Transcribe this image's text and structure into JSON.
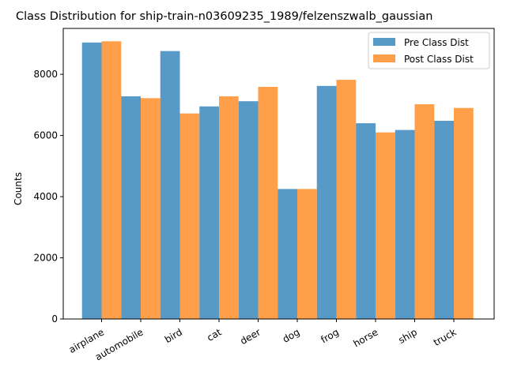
{
  "chart_data": {
    "type": "bar",
    "title": "Class Distribution for ship-train-n03609235_1989/felzenszwalb_gaussian",
    "xlabel": "",
    "ylabel": "Counts",
    "categories": [
      "airplane",
      "automobile",
      "bird",
      "cat",
      "deer",
      "dog",
      "frog",
      "horse",
      "ship",
      "truck"
    ],
    "series": [
      {
        "name": "Pre Class Dist",
        "color": "#1f77b4",
        "values": [
          9040,
          7280,
          8760,
          6950,
          7120,
          4250,
          7620,
          6400,
          6180,
          6480
        ]
      },
      {
        "name": "Post Class Dist",
        "color": "#ff7f0e",
        "values": [
          9080,
          7220,
          6720,
          7280,
          7590,
          4250,
          7820,
          6100,
          7020,
          6900
        ]
      }
    ],
    "ylim": [
      0,
      9500
    ],
    "yticks": [
      0,
      2000,
      4000,
      6000,
      8000
    ],
    "grid": false,
    "legend_position": "top-right",
    "bar_opacity": 0.75
  }
}
